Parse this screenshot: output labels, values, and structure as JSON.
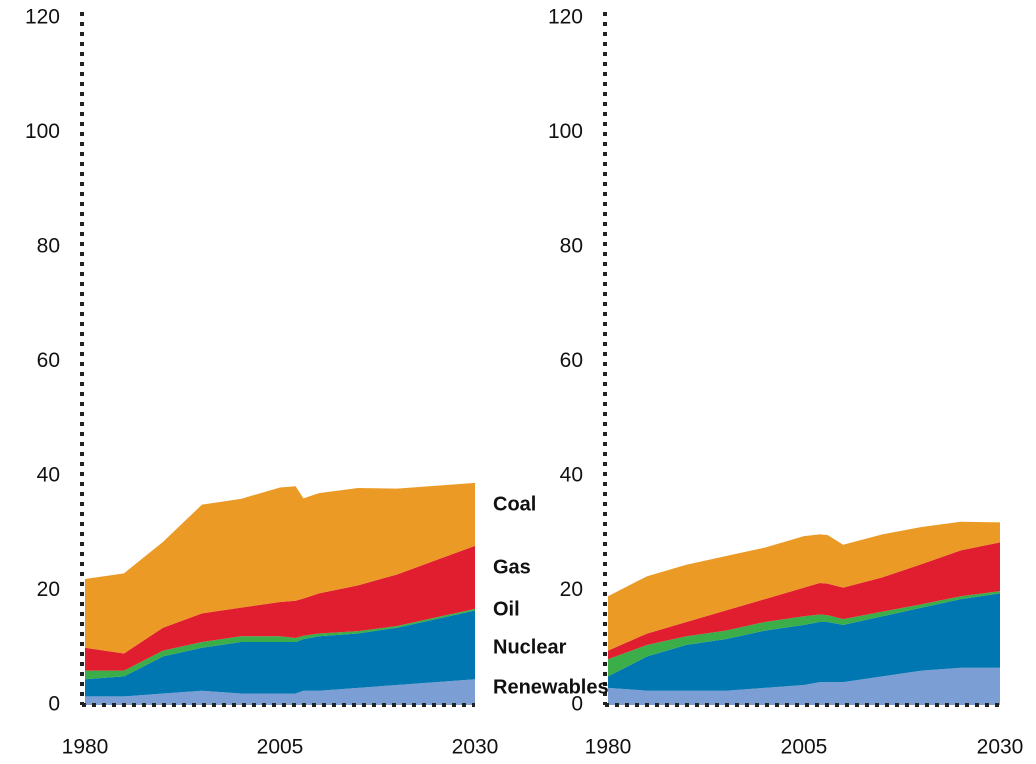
{
  "chart_data": [
    {
      "type": "stacked_area",
      "x": [
        1980,
        1985,
        1990,
        1995,
        2000,
        2005,
        2007,
        2008,
        2010,
        2015,
        2020,
        2025,
        2030
      ],
      "xlim": [
        1980,
        2030
      ],
      "xticks": [
        1980,
        2005,
        2030
      ],
      "ylim": [
        0,
        120
      ],
      "yticks": [
        0,
        20,
        40,
        60,
        80,
        100,
        120
      ],
      "series": [
        {
          "name": "Renewables",
          "color": "#7b9fd4",
          "values": [
            1.5,
            1.5,
            2,
            2.5,
            2,
            2,
            2,
            2.5,
            2.5,
            3,
            3.5,
            4,
            4.5
          ]
        },
        {
          "name": "Nuclear",
          "color": "#0077b0",
          "values": [
            3,
            3.5,
            6.5,
            7.5,
            9,
            9,
            9,
            9,
            9.5,
            9.5,
            10,
            11,
            12
          ]
        },
        {
          "name": "Oil",
          "color": "#3cae49",
          "values": [
            1.5,
            1,
            1,
            1,
            1,
            1,
            0.7,
            0.6,
            0.5,
            0.4,
            0.3,
            0.3,
            0.3
          ]
        },
        {
          "name": "Gas",
          "color": "#e01e30",
          "values": [
            4,
            3,
            4,
            5,
            5,
            6,
            6.5,
            6.5,
            7,
            8,
            9,
            10,
            11
          ]
        },
        {
          "name": "Coal",
          "color": "#eb9a25",
          "values": [
            12,
            14,
            15,
            19,
            19,
            20,
            20,
            17.5,
            17.5,
            17,
            15,
            13,
            11
          ]
        }
      ]
    },
    {
      "type": "stacked_area",
      "x": [
        1980,
        1985,
        1990,
        1995,
        2000,
        2005,
        2007,
        2008,
        2010,
        2015,
        2020,
        2025,
        2030
      ],
      "xlim": [
        1980,
        2030
      ],
      "xticks": [
        1980,
        2005,
        2030
      ],
      "ylim": [
        0,
        120
      ],
      "yticks": [
        0,
        20,
        40,
        60,
        80,
        100,
        120
      ],
      "series": [
        {
          "name": "Renewables",
          "color": "#7b9fd4",
          "values": [
            3,
            2.5,
            2.5,
            2.5,
            3,
            3.5,
            4,
            4,
            4,
            5,
            6,
            6.5,
            6.5
          ]
        },
        {
          "name": "Nuclear",
          "color": "#0077b0",
          "values": [
            2,
            6,
            8,
            9,
            10,
            10.5,
            10.5,
            10.5,
            10,
            10.5,
            11,
            12,
            13
          ]
        },
        {
          "name": "Oil",
          "color": "#3cae49",
          "values": [
            3,
            2,
            1.5,
            1.5,
            1.5,
            1.5,
            1.3,
            1.2,
            1,
            0.8,
            0.6,
            0.5,
            0.4
          ]
        },
        {
          "name": "Gas",
          "color": "#e01e30",
          "values": [
            1.5,
            2,
            2.5,
            3.5,
            4,
            5,
            5.5,
            5.5,
            5.5,
            6,
            7,
            8,
            8.5
          ]
        },
        {
          "name": "Coal",
          "color": "#eb9a25",
          "values": [
            9.5,
            10,
            10,
            9.5,
            9,
            9,
            8.5,
            8.5,
            7.5,
            7.5,
            6.5,
            5,
            3.5
          ]
        }
      ]
    }
  ]
}
